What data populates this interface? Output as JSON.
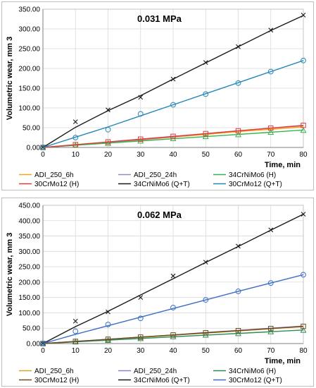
{
  "chart_data": [
    {
      "type": "line",
      "title": "0.031 MPa",
      "xlabel": "Time, min",
      "ylabel": "Volumetric  wear, mm 3",
      "xlim": [
        0,
        80
      ],
      "ylim": [
        0,
        350
      ],
      "x_ticks": [
        "0",
        "10",
        "20",
        "30",
        "40",
        "50",
        "60",
        "70",
        "80"
      ],
      "y_ticks": [
        "0.00",
        "50.00",
        "100.00",
        "150.00",
        "200.00",
        "250.00",
        "300.00",
        "350.00"
      ],
      "grid": true,
      "legend_position": "bottom",
      "x": [
        0,
        10,
        20,
        30,
        40,
        50,
        60,
        70,
        80
      ],
      "series": [
        {
          "name": "ADI_250_6h",
          "color": "#f4a21b",
          "marker": "none",
          "line_y": [
            0,
            6,
            12,
            19,
            26,
            33,
            40,
            46,
            52
          ],
          "point_y": [
            0,
            6,
            12,
            19,
            26,
            33,
            40,
            46,
            52
          ]
        },
        {
          "name": "ADI_250_24h",
          "color": "#9a86c6",
          "marker": "none",
          "line_y": [
            0,
            6,
            13,
            20,
            27,
            35,
            42,
            49,
            55
          ],
          "point_y": [
            0,
            6,
            13,
            20,
            27,
            35,
            42,
            49,
            55
          ]
        },
        {
          "name": "34CrNiMo6 (H)",
          "color": "#37b24d",
          "marker": "triangle",
          "line_y": [
            0,
            5.5,
            11,
            16.5,
            22,
            27.5,
            33,
            38.5,
            44
          ],
          "point_y": [
            0,
            5,
            10,
            16,
            22,
            27,
            32,
            38,
            43
          ]
        },
        {
          "name": "30CrMo12 (H)",
          "color": "#e03a3a",
          "marker": "square",
          "line_y": [
            0,
            7,
            14,
            21,
            28,
            35,
            42,
            49,
            56
          ],
          "point_y": [
            0,
            7,
            14,
            21,
            28,
            35,
            42,
            49,
            56
          ]
        },
        {
          "name": "34CrNiMo6 (Q+T)",
          "color": "#1a1a1a",
          "marker": "x",
          "line_y": [
            0,
            51,
            93,
            131,
            173,
            214,
            255,
            296,
            334
          ],
          "point_y": [
            0,
            65,
            95,
            127,
            173,
            215,
            255,
            297,
            335
          ]
        },
        {
          "name": "30CrMo12 (Q+T)",
          "color": "#2487b8",
          "marker": "circle",
          "line_y": [
            0,
            26,
            52,
            80,
            108,
            136,
            164,
            192,
            220
          ],
          "point_y": [
            0,
            25,
            45,
            85,
            108,
            135,
            163,
            192,
            220
          ]
        }
      ]
    },
    {
      "type": "line",
      "title": "0.062 MPa",
      "xlabel": "Time, min",
      "ylabel": "Volumetric  wear, mm 3",
      "xlim": [
        0,
        80
      ],
      "ylim": [
        0,
        450
      ],
      "x_ticks": [
        "0",
        "10",
        "20",
        "30",
        "40",
        "50",
        "60",
        "70",
        "80"
      ],
      "y_ticks": [
        "0.00",
        "50.00",
        "100.00",
        "150.00",
        "200.00",
        "250.00",
        "300.00",
        "350.00",
        "400.00",
        "450.00"
      ],
      "grid": true,
      "legend_position": "bottom",
      "x": [
        0,
        10,
        20,
        30,
        40,
        50,
        60,
        70,
        80
      ],
      "series": [
        {
          "name": "ADI_250_6h",
          "color": "#d4a62a",
          "marker": "none",
          "line_y": [
            0,
            6,
            13,
            20,
            27,
            34,
            41,
            48,
            55
          ],
          "point_y": [
            0,
            6,
            13,
            20,
            27,
            34,
            41,
            48,
            55
          ]
        },
        {
          "name": "ADI_250_24h",
          "color": "#8a83c9",
          "marker": "none",
          "line_y": [
            0,
            7,
            14,
            21,
            28,
            36,
            43,
            50,
            57
          ],
          "point_y": [
            0,
            7,
            14,
            21,
            28,
            36,
            43,
            50,
            57
          ]
        },
        {
          "name": "34CrNiMo6 (H)",
          "color": "#2e8b57",
          "marker": "triangle",
          "line_y": [
            0,
            5.5,
            11,
            16.5,
            22,
            27.5,
            33,
            38.5,
            44
          ],
          "point_y": [
            0,
            5,
            10,
            16,
            22,
            27,
            32,
            38,
            43
          ]
        },
        {
          "name": "30CrMo12 (H)",
          "color": "#6b4a1e",
          "marker": "square",
          "line_y": [
            0,
            7,
            14,
            21,
            28,
            35,
            42,
            49,
            56
          ],
          "point_y": [
            0,
            7,
            14,
            21,
            28,
            35,
            42,
            49,
            56
          ]
        },
        {
          "name": "34CrNiMo6 (Q+T)",
          "color": "#1a1a1a",
          "marker": "x",
          "line_y": [
            0,
            55,
            105,
            158,
            211,
            264,
            316,
            369,
            421
          ],
          "point_y": [
            0,
            73,
            103,
            150,
            220,
            265,
            317,
            370,
            421
          ]
        },
        {
          "name": "30CrMo12 (Q+T)",
          "color": "#3b6fc4",
          "marker": "circle",
          "line_y": [
            0,
            30,
            58,
            86,
            114,
            142,
            170,
            197,
            224
          ],
          "point_y": [
            0,
            40,
            62,
            82,
            117,
            142,
            170,
            197,
            224
          ]
        }
      ]
    }
  ]
}
